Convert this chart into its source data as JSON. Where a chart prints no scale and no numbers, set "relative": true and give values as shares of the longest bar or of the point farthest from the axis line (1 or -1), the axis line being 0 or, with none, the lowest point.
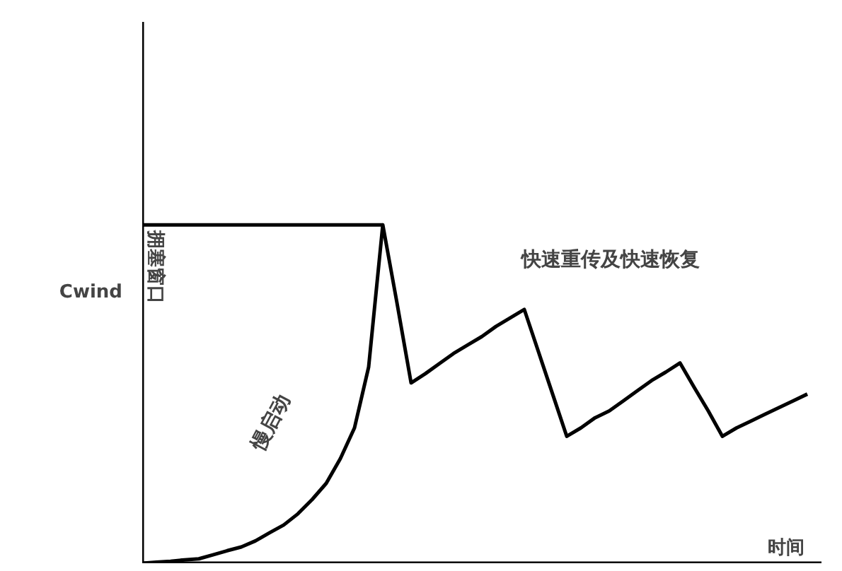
{
  "chart_data": {
    "type": "line",
    "relative": true,
    "ylabel": "Cwind",
    "xlabel": "时间",
    "grid": false,
    "marker": "none",
    "line_style": "solid",
    "categories": [
      null,
      null,
      null,
      null,
      null,
      null,
      null,
      null,
      null,
      null,
      null,
      null,
      null,
      null,
      null,
      null,
      null,
      null,
      null,
      null,
      null,
      null,
      null,
      null,
      null,
      null,
      null,
      null,
      null,
      null,
      null,
      null,
      null,
      null,
      null,
      null,
      null,
      null,
      null,
      null,
      null,
      null,
      null,
      null,
      null,
      null,
      null,
      null
    ],
    "series": [
      {
        "color": "#000000",
        "values": [
          0,
          0.003,
          0.006,
          0.01,
          0.013,
          0.025,
          0.037,
          0.048,
          0.066,
          0.09,
          0.113,
          0.146,
          0.188,
          0.236,
          0.309,
          0.4,
          0.58,
          1,
          0.77,
          0.533,
          0.56,
          0.59,
          0.62,
          0.645,
          0.67,
          0.7,
          0.725,
          0.75,
          0.625,
          0.5,
          0.375,
          0.4,
          0.43,
          0.45,
          0.48,
          0.51,
          0.54,
          0.565,
          0.592,
          0.52,
          0.45,
          0.375,
          0.4,
          0.42,
          0.44,
          0.46,
          0.48,
          0.5
        ]
      }
    ],
    "ref_lines": [
      {
        "axis": "y",
        "value": 1,
        "label": "拥塞窗口",
        "color": "#000000"
      }
    ],
    "annotations": [
      "慢启动",
      "快速重传及快速恢复"
    ]
  }
}
